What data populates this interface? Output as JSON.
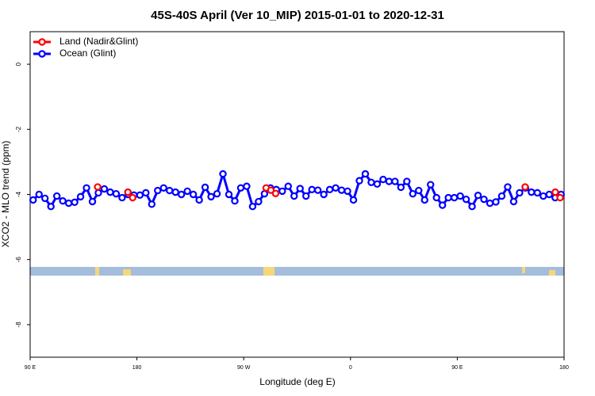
{
  "chart_data": {
    "type": "line",
    "title": "45S-40S April (Ver 10_MIP)   2015-01-01 to 2020-12-31",
    "xlabel": "Longitude (deg E)",
    "ylabel": "XCO2 - MLO trend (ppm)",
    "xlim": [
      90,
      540
    ],
    "ylim": [
      -9,
      1
    ],
    "xticks": [
      {
        "value": 90,
        "label": "90 E"
      },
      180,
      {
        "value": 270,
        "label": "90 W"
      },
      {
        "value": 360,
        "label": "0"
      },
      {
        "value": 450,
        "label": "90 E"
      },
      {
        "value": 540,
        "label": "180"
      }
    ],
    "yticks": [
      0,
      -2,
      -4,
      -6,
      -8
    ],
    "legend": "top-left",
    "series": [
      {
        "name": "Land (Nadir&Glint)",
        "color": "#ff0000",
        "x": [
          146.9,
          172.4,
          176.4,
          288.9,
          292.9,
          296.9,
          507.2,
          532.6,
          536.7
        ],
        "values": [
          -3.77,
          -3.93,
          -4.1,
          -3.8,
          -3.87,
          -3.97,
          -3.77,
          -3.93,
          -4.1
        ]
      },
      {
        "name": "Ocean (Glint)",
        "color": "#0000ff",
        "x": [
          92.5,
          97.5,
          102.5,
          107.5,
          112.5,
          117.5,
          122.5,
          127.5,
          132.5,
          137.5,
          142.5,
          147.5,
          152.5,
          157.5,
          162.5,
          167.5,
          172.5,
          177.5,
          182.5,
          187.5,
          192.5,
          197.5,
          202.5,
          207.5,
          212.5,
          217.5,
          222.5,
          227.5,
          232.5,
          237.5,
          242.5,
          247.5,
          252.5,
          257.5,
          262.5,
          267.5,
          272.5,
          277.5,
          282.5,
          287.5,
          292.5,
          297.5,
          302.5,
          307.5,
          312.5,
          317.5,
          322.5,
          327.5,
          332.5,
          337.5,
          342.5,
          347.5,
          352.5,
          357.5,
          362.5,
          367.5,
          372.5,
          377.5,
          382.5,
          387.5,
          392.5,
          397.5,
          402.5,
          407.5,
          412.5,
          417.5,
          422.5,
          427.5,
          432.5,
          437.5,
          442.5,
          447.5,
          452.5,
          457.5,
          462.5,
          467.5,
          472.5,
          477.5,
          482.5,
          487.5,
          492.5,
          497.5,
          502.5,
          507.5,
          512.5,
          517.5,
          522.5,
          527.5,
          532.5,
          537.5
        ],
        "values": [
          -4.17,
          -4.0,
          -4.12,
          -4.37,
          -4.05,
          -4.2,
          -4.27,
          -4.24,
          -4.07,
          -3.8,
          -4.22,
          -3.95,
          -3.83,
          -3.93,
          -3.98,
          -4.1,
          -4.0,
          -4.02,
          -4.02,
          -3.95,
          -4.3,
          -3.88,
          -3.8,
          -3.88,
          -3.93,
          -4.0,
          -3.9,
          -4.0,
          -4.17,
          -3.78,
          -4.07,
          -3.98,
          -3.37,
          -4.0,
          -4.2,
          -3.8,
          -3.75,
          -4.37,
          -4.22,
          -3.98,
          -3.8,
          -3.85,
          -3.9,
          -3.75,
          -4.05,
          -3.82,
          -4.05,
          -3.85,
          -3.87,
          -4.0,
          -3.85,
          -3.8,
          -3.87,
          -3.9,
          -4.17,
          -3.58,
          -3.37,
          -3.63,
          -3.68,
          -3.54,
          -3.6,
          -3.6,
          -3.78,
          -3.6,
          -3.98,
          -3.88,
          -4.17,
          -3.7,
          -4.1,
          -4.33,
          -4.1,
          -4.1,
          -4.05,
          -4.15,
          -4.37,
          -4.03,
          -4.15,
          -4.27,
          -4.23,
          -4.05,
          -3.77,
          -4.22,
          -3.95,
          -3.8,
          -3.93,
          -3.95,
          -4.05,
          -4.0,
          -4.1,
          -4.0
        ]
      }
    ]
  }
}
